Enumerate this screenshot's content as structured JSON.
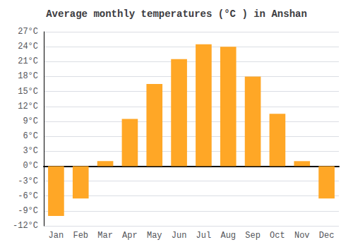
{
  "chart_data": {
    "type": "bar",
    "title": "Average monthly temperatures (°C ) in Anshan",
    "categories": [
      "Jan",
      "Feb",
      "Mar",
      "Apr",
      "May",
      "Jun",
      "Jul",
      "Aug",
      "Sep",
      "Oct",
      "Nov",
      "Dec"
    ],
    "values": [
      -10,
      -6.5,
      1,
      9.5,
      16.5,
      21.5,
      24.5,
      24,
      18,
      10.5,
      1,
      -6.5
    ],
    "color": "#FFA726",
    "ylim": [
      -12,
      27
    ],
    "yticks": [
      {
        "value": -12,
        "label": "-12°C"
      },
      {
        "value": -9,
        "label": "-9°C"
      },
      {
        "value": -6,
        "label": "-6°C"
      },
      {
        "value": -3,
        "label": "-3°C"
      },
      {
        "value": 0,
        "label": "0°C"
      },
      {
        "value": 3,
        "label": "3°C"
      },
      {
        "value": 6,
        "label": "6°C"
      },
      {
        "value": 9,
        "label": "9°C"
      },
      {
        "value": 12,
        "label": "12°C"
      },
      {
        "value": 15,
        "label": "15°C"
      },
      {
        "value": 18,
        "label": "18°C"
      },
      {
        "value": 21,
        "label": "21°C"
      },
      {
        "value": 24,
        "label": "24°C"
      },
      {
        "value": 27,
        "label": "27°C"
      }
    ],
    "grid": true
  }
}
